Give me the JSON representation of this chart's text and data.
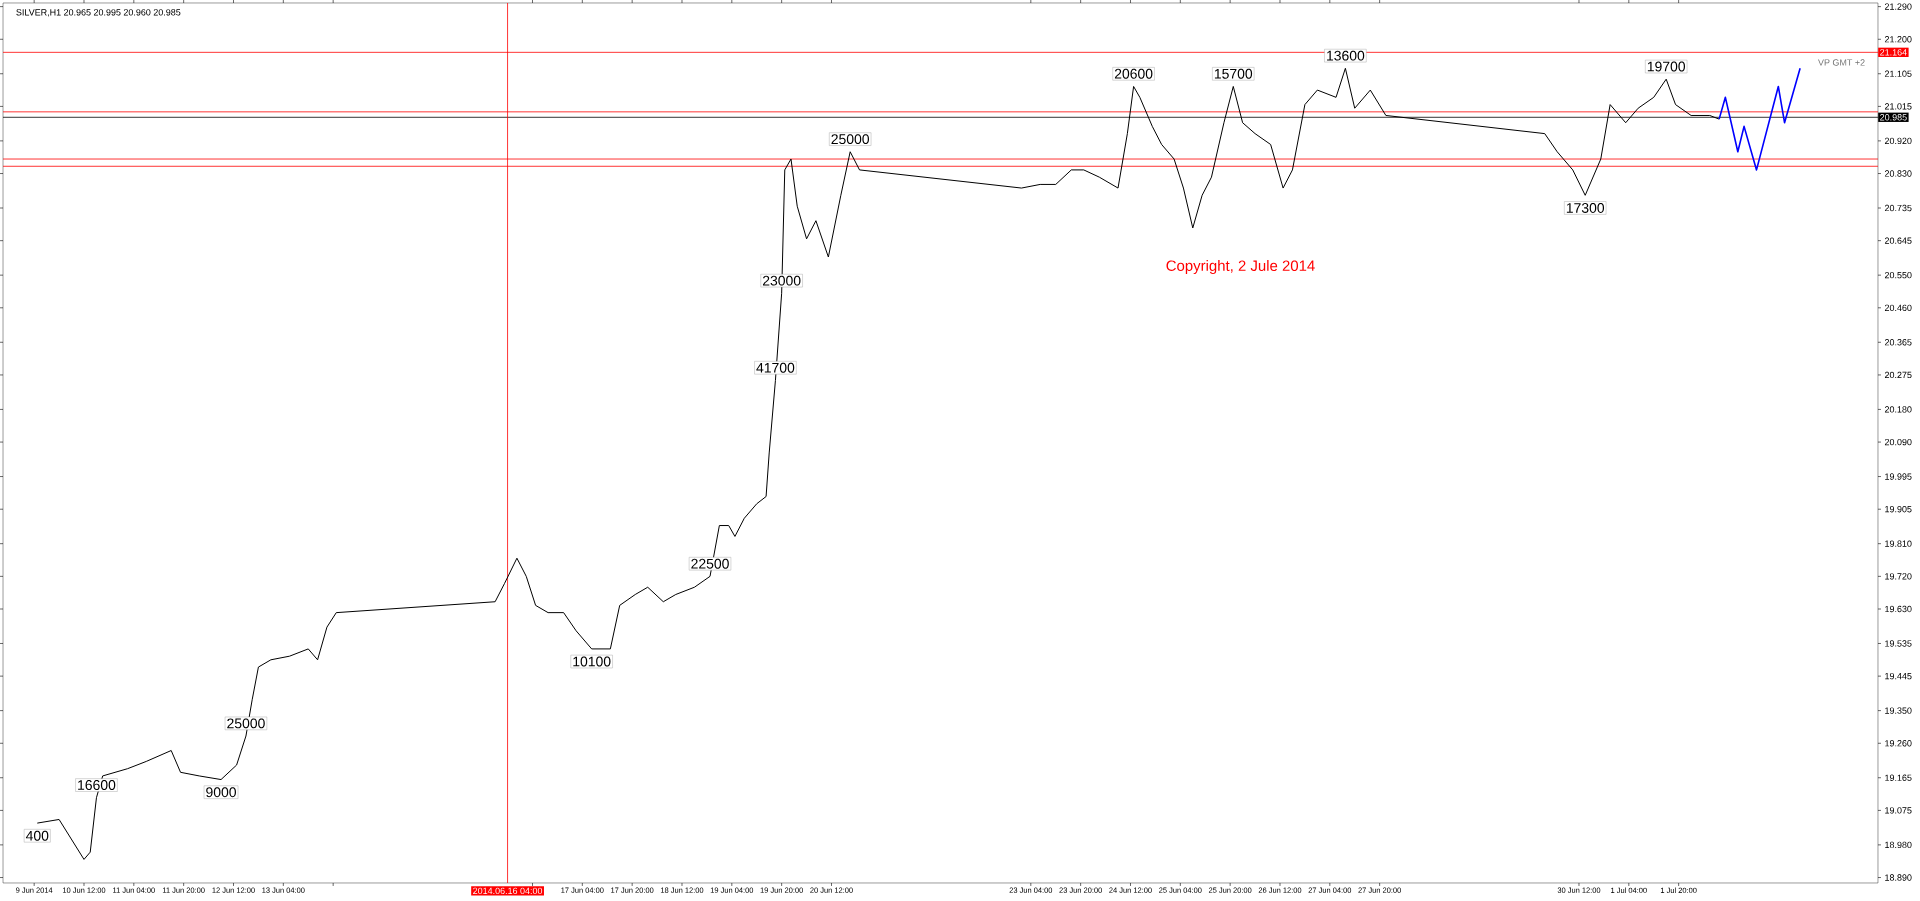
{
  "chart_data": {
    "type": "line",
    "title": "SILVER,H1  20.965 20.995 20.960 20.985",
    "xlim": [
      "2014-06-09T10:00",
      "2014-07-04T12:00"
    ],
    "ylim": [
      18.875,
      21.3
    ],
    "xticks": [
      {
        "value": "2014-06-09T20:00",
        "label": "9 Jun 2014"
      },
      {
        "value": "2014-06-10T12:00",
        "label": "10 Jun 12:00"
      },
      {
        "value": "2014-06-11T04:00",
        "label": "11 Jun 04:00"
      },
      {
        "value": "2014-06-11T20:00",
        "label": "11 Jun 20:00"
      },
      {
        "value": "2014-06-12T12:00",
        "label": "12 Jun 12:00"
      },
      {
        "value": "2014-06-13T04:00",
        "label": "13 Jun 04:00"
      },
      {
        "value": "2014-06-13T20:00",
        "label": null
      },
      {
        "value": "2014-06-16T12:00",
        "label": null
      },
      {
        "value": "2014-06-17T04:00",
        "label": "17 Jun 04:00"
      },
      {
        "value": "2014-06-17T20:00",
        "label": "17 Jun 20:00"
      },
      {
        "value": "2014-06-18T12:00",
        "label": "18 Jun 12:00"
      },
      {
        "value": "2014-06-19T04:00",
        "label": "19 Jun 04:00"
      },
      {
        "value": "2014-06-19T20:00",
        "label": "19 Jun 20:00"
      },
      {
        "value": "2014-06-20T12:00",
        "label": "20 Jun 12:00"
      },
      {
        "value": "2014-06-23T04:00",
        "label": "23 Jun 04:00"
      },
      {
        "value": "2014-06-23T20:00",
        "label": "23 Jun 20:00"
      },
      {
        "value": "2014-06-24T12:00",
        "label": "24 Jun 12:00"
      },
      {
        "value": "2014-06-25T04:00",
        "label": "25 Jun 04:00"
      },
      {
        "value": "2014-06-25T20:00",
        "label": "25 Jun 20:00"
      },
      {
        "value": "2014-06-26T12:00",
        "label": "26 Jun 12:00"
      },
      {
        "value": "2014-06-27T04:00",
        "label": "27 Jun 04:00"
      },
      {
        "value": "2014-06-27T20:00",
        "label": "27 Jun 20:00"
      },
      {
        "value": "2014-06-30T12:00",
        "label": "30 Jun 12:00"
      },
      {
        "value": "2014-07-01T04:00",
        "label": "1 Jul 04:00"
      },
      {
        "value": "2014-07-01T20:00",
        "label": "1 Jul 20:00"
      }
    ],
    "yticks": [
      {
        "value": 21.29,
        "label": "21.290"
      },
      {
        "value": 21.2,
        "label": "21.200"
      },
      {
        "value": 21.105,
        "label": "21.105"
      },
      {
        "value": 21.015,
        "label": "21.015"
      },
      {
        "value": 20.92,
        "label": "20.920"
      },
      {
        "value": 20.83,
        "label": "20.830"
      },
      {
        "value": 20.735,
        "label": "20.735"
      },
      {
        "value": 20.645,
        "label": "20.645"
      },
      {
        "value": 20.55,
        "label": "20.550"
      },
      {
        "value": 20.46,
        "label": "20.460"
      },
      {
        "value": 20.365,
        "label": "20.365"
      },
      {
        "value": 20.275,
        "label": "20.275"
      },
      {
        "value": 20.18,
        "label": "20.180"
      },
      {
        "value": 20.09,
        "label": "20.090"
      },
      {
        "value": 19.995,
        "label": "19.995"
      },
      {
        "value": 19.905,
        "label": "19.905"
      },
      {
        "value": 19.81,
        "label": "19.810"
      },
      {
        "value": 19.72,
        "label": "19.720"
      },
      {
        "value": 19.63,
        "label": "19.630"
      },
      {
        "value": 19.535,
        "label": "19.535"
      },
      {
        "value": 19.445,
        "label": "19.445"
      },
      {
        "value": 19.35,
        "label": "19.350"
      },
      {
        "value": 19.26,
        "label": "19.260"
      },
      {
        "value": 19.165,
        "label": "19.165"
      },
      {
        "value": 19.075,
        "label": "19.075"
      },
      {
        "value": 18.98,
        "label": "18.980"
      },
      {
        "value": 18.89,
        "label": "18.890"
      }
    ],
    "series": [
      {
        "color": "#000000",
        "x": [
          "2014-06-09T21:00",
          "2014-06-10T04:00",
          "2014-06-10T12:00",
          "2014-06-10T14:00",
          "2014-06-10T16:00",
          "2014-06-10T18:00",
          "2014-06-11T02:00",
          "2014-06-11T08:00",
          "2014-06-11T16:00",
          "2014-06-11T19:00",
          "2014-06-12T01:00",
          "2014-06-12T08:00",
          "2014-06-12T13:00",
          "2014-06-12T16:00",
          "2014-06-12T18:00",
          "2014-06-12T20:00",
          "2014-06-13T00:00",
          "2014-06-13T06:00",
          "2014-06-13T12:00",
          "2014-06-13T15:00",
          "2014-06-13T18:00",
          "2014-06-13T21:00",
          "2014-06-16T00:00",
          "2014-06-16T03:00",
          "2014-06-16T07:00",
          "2014-06-16T10:00",
          "2014-06-16T13:00",
          "2014-06-16T17:00",
          "2014-06-16T22:00",
          "2014-06-17T02:00",
          "2014-06-17T07:00",
          "2014-06-17T13:00",
          "2014-06-17T16:00",
          "2014-06-17T21:00",
          "2014-06-18T01:00",
          "2014-06-18T06:00",
          "2014-06-18T10:00",
          "2014-06-18T16:00",
          "2014-06-18T21:00",
          "2014-06-19T00:00",
          "2014-06-19T03:00",
          "2014-06-19T05:00",
          "2014-06-19T08:00",
          "2014-06-19T12:00",
          "2014-06-19T15:00",
          "2014-06-19T16:00",
          "2014-06-19T18:00",
          "2014-06-19T20:00",
          "2014-06-19T21:00",
          "2014-06-19T23:00",
          "2014-06-20T01:00",
          "2014-06-20T04:00",
          "2014-06-20T07:00",
          "2014-06-20T11:00",
          "2014-06-20T15:00",
          "2014-06-20T18:00",
          "2014-06-20T21:00",
          "2014-06-23T01:00",
          "2014-06-23T07:00",
          "2014-06-23T12:00",
          "2014-06-23T17:00",
          "2014-06-23T21:00",
          "2014-06-24T02:00",
          "2014-06-24T08:00",
          "2014-06-24T11:00",
          "2014-06-24T13:00",
          "2014-06-24T15:00",
          "2014-06-24T19:00",
          "2014-06-24T22:00",
          "2014-06-25T02:00",
          "2014-06-25T05:00",
          "2014-06-25T08:00",
          "2014-06-25T11:00",
          "2014-06-25T14:00",
          "2014-06-25T18:00",
          "2014-06-25T21:00",
          "2014-06-26T00:00",
          "2014-06-26T04:00",
          "2014-06-26T09:00",
          "2014-06-26T13:00",
          "2014-06-26T16:00",
          "2014-06-26T20:00",
          "2014-06-27T00:00",
          "2014-06-27T06:00",
          "2014-06-27T09:00",
          "2014-06-27T12:00",
          "2014-06-27T17:00",
          "2014-06-27T22:00",
          "2014-06-30T01:00",
          "2014-06-30T05:00",
          "2014-06-30T10:00",
          "2014-06-30T14:00",
          "2014-06-30T19:00",
          "2014-06-30T22:00",
          "2014-07-01T03:00",
          "2014-07-01T07:00",
          "2014-07-01T12:00",
          "2014-07-01T16:00",
          "2014-07-01T19:00",
          "2014-07-02T00:00",
          "2014-07-02T06:00",
          "2014-07-02T09:00"
        ],
        "values": [
          19.04,
          19.05,
          18.94,
          18.96,
          19.11,
          19.17,
          19.19,
          19.21,
          19.24,
          19.18,
          19.17,
          19.16,
          19.2,
          19.28,
          19.38,
          19.47,
          19.49,
          19.5,
          19.52,
          19.49,
          19.58,
          19.62,
          19.65,
          19.7,
          19.77,
          19.72,
          19.64,
          19.62,
          19.62,
          19.57,
          19.52,
          19.52,
          19.64,
          19.67,
          19.69,
          19.65,
          19.67,
          19.69,
          19.72,
          19.86,
          19.86,
          19.83,
          19.88,
          19.92,
          19.94,
          20.06,
          20.26,
          20.5,
          20.84,
          20.87,
          20.74,
          20.65,
          20.7,
          20.6,
          20.77,
          20.89,
          20.84,
          20.79,
          20.8,
          20.8,
          20.84,
          20.84,
          20.82,
          20.79,
          20.94,
          21.07,
          21.04,
          20.96,
          20.91,
          20.87,
          20.79,
          20.68,
          20.77,
          20.82,
          20.97,
          21.07,
          20.97,
          20.94,
          20.91,
          20.79,
          20.84,
          21.02,
          21.06,
          21.04,
          21.12,
          21.01,
          21.06,
          20.99,
          20.94,
          20.89,
          20.84,
          20.77,
          20.87,
          21.02,
          20.97,
          21.01,
          21.04,
          21.09,
          21.02,
          20.99,
          20.99,
          20.98
        ]
      },
      {
        "color": "#0000ff",
        "x": [
          "2014-07-02T09:00",
          "2014-07-02T11:00",
          "2014-07-02T15:00",
          "2014-07-02T17:00",
          "2014-07-02T21:00",
          "2014-07-03T04:00",
          "2014-07-03T06:00",
          "2014-07-03T11:00"
        ],
        "values": [
          20.98,
          21.04,
          20.89,
          20.96,
          20.84,
          21.07,
          20.97,
          21.12
        ]
      }
    ],
    "ref_lines": [
      {
        "axis": "y",
        "value": 21.164,
        "label": "21.164",
        "color": "#ff0000"
      },
      {
        "axis": "y",
        "value": 20.985,
        "label": "20.985",
        "color": "#000000"
      },
      {
        "axis": "y",
        "value": 21.0,
        "color": "#ff0000"
      },
      {
        "axis": "y",
        "value": 20.87,
        "color": "#ff0000"
      },
      {
        "axis": "y",
        "value": 20.85,
        "color": "#ff0000"
      },
      {
        "axis": "x",
        "value": "2014-06-16T04:00",
        "label": "2014.06.16 04:00",
        "color": "#ff0000"
      }
    ],
    "annotations": [
      {
        "text": "400",
        "x": "2014-06-09T21:00",
        "y": 19.04
      },
      {
        "text": "16600",
        "x": "2014-06-10T16:00",
        "y": 19.11
      },
      {
        "text": "9000",
        "x": "2014-06-12T08:00",
        "y": 19.16
      },
      {
        "text": "25000",
        "x": "2014-06-12T16:00",
        "y": 19.28
      },
      {
        "text": "10100",
        "x": "2014-06-17T07:00",
        "y": 19.52
      },
      {
        "text": "22500",
        "x": "2014-06-18T21:00",
        "y": 19.72
      },
      {
        "text": "41700",
        "x": "2014-06-19T18:00",
        "y": 20.26
      },
      {
        "text": "23000",
        "x": "2014-06-19T20:00",
        "y": 20.5
      },
      {
        "text": "25000",
        "x": "2014-06-20T18:00",
        "y": 20.89
      },
      {
        "text": "20600",
        "x": "2014-06-24T13:00",
        "y": 21.07
      },
      {
        "text": "15700",
        "x": "2014-06-25T21:00",
        "y": 21.07
      },
      {
        "text": "13600",
        "x": "2014-06-27T09:00",
        "y": 21.12
      },
      {
        "text": "17300",
        "x": "2014-06-30T14:00",
        "y": 20.77
      },
      {
        "text": "19700",
        "x": "2014-07-01T16:00",
        "y": 21.09
      },
      "Copyright, 2 Jule 2014",
      "VP GMT +2"
    ]
  }
}
